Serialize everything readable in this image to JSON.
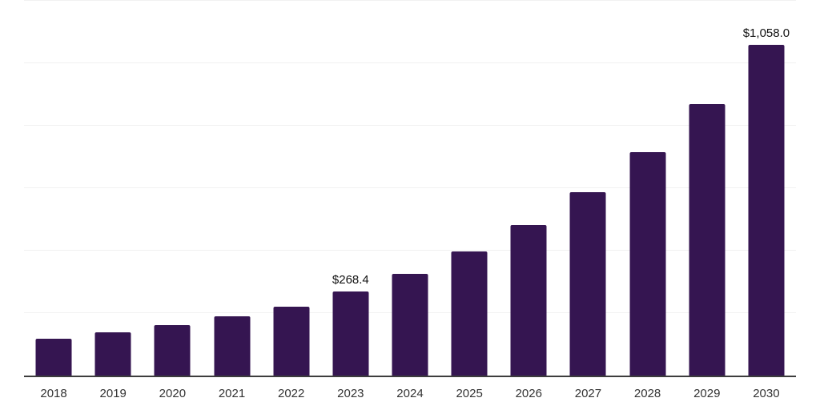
{
  "chart_data": {
    "type": "bar",
    "title": "",
    "xlabel": "",
    "ylabel": "",
    "categories": [
      "2018",
      "2019",
      "2020",
      "2021",
      "2022",
      "2023",
      "2024",
      "2025",
      "2026",
      "2027",
      "2028",
      "2029",
      "2030"
    ],
    "values": [
      118.7,
      139.2,
      161.2,
      189.5,
      220.9,
      268.4,
      326.5,
      397.2,
      483.2,
      587.8,
      715.0,
      869.8,
      1058.0
    ],
    "value_prefix": "$",
    "data_labels": [
      {
        "category": "2023",
        "text": "$268.4"
      },
      {
        "category": "2030",
        "text": "$1,058.0"
      }
    ],
    "ylim": [
      0,
      1200
    ],
    "gridline_step": 200,
    "grid": "horizontal",
    "legend": "none",
    "colors": {
      "bar": "#351551",
      "gridline": "#f1f1f1",
      "axis_line": "#3d3d3d",
      "tick_label": "#333333",
      "data_label": "#111111",
      "background": "#ffffff"
    }
  }
}
